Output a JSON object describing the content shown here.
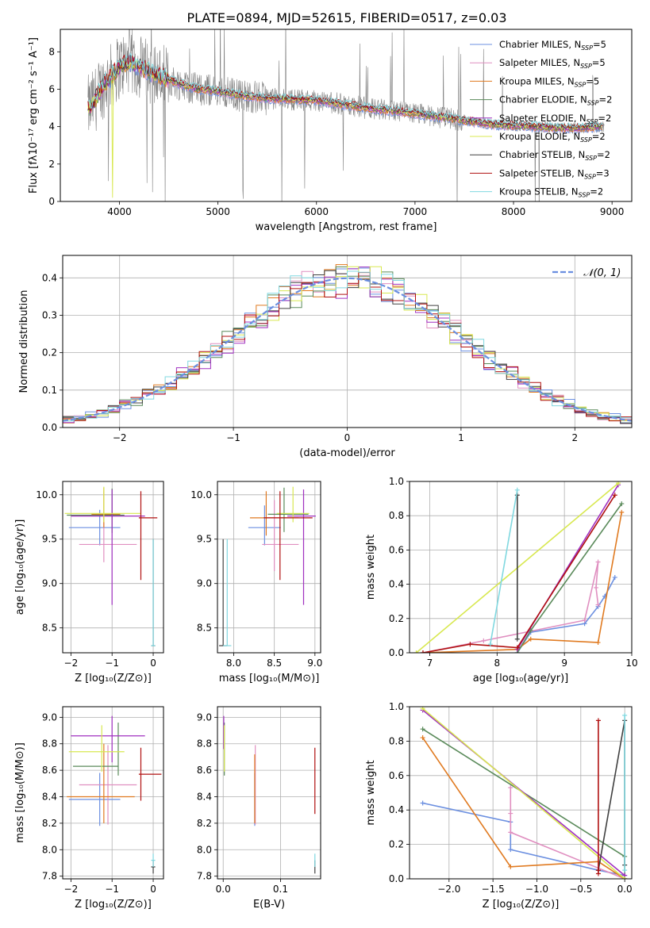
{
  "figure": {
    "title": "PLATE=0894, MJD=52615, FIBERID=0517, z=0.03"
  },
  "series_styles": [
    {
      "name": "Chabrier MILES",
      "nssp": "5",
      "color": "#6b8fe0"
    },
    {
      "name": "Salpeter MILES",
      "nssp": "5",
      "color": "#e08fc0"
    },
    {
      "name": "Kroupa MILES",
      "nssp": "5",
      "color": "#e07a20"
    },
    {
      "name": "Chabrier ELODIE",
      "nssp": "2",
      "color": "#5a8a5a"
    },
    {
      "name": "Salpeter ELODIE",
      "nssp": "2",
      "color": "#a030c0"
    },
    {
      "name": "Kroupa ELODIE",
      "nssp": "2",
      "color": "#d8e850"
    },
    {
      "name": "Chabrier STELIB",
      "nssp": "2",
      "color": "#404040"
    },
    {
      "name": "Salpeter STELIB",
      "nssp": "3",
      "color": "#b01010"
    },
    {
      "name": "Kroupa STELIB",
      "nssp": "2",
      "color": "#80d8e0"
    }
  ],
  "chart_data": [
    {
      "type": "line",
      "id": "spectrum",
      "xlabel": "wavelength [Angstrom, rest frame]",
      "ylabel": "Flux [fλ10⁻¹⁷ erg cm⁻² s⁻¹ A⁻¹]",
      "xlim": [
        3400,
        9200
      ],
      "ylim": [
        0,
        9.2
      ],
      "xticks": [
        4000,
        5000,
        6000,
        7000,
        8000,
        9000
      ],
      "yticks": [
        0,
        2,
        4,
        6,
        8
      ],
      "legend": "top-right",
      "model_continuum": {
        "x": [
          3700,
          3850,
          4000,
          4100,
          4200,
          4400,
          4600,
          4800,
          5000,
          5200,
          5500,
          6000,
          6500,
          7000,
          7400,
          7800,
          8200,
          8600,
          8900
        ],
        "y": [
          5.0,
          6.3,
          7.2,
          7.5,
          7.2,
          6.7,
          6.3,
          6.0,
          5.9,
          5.7,
          5.5,
          5.4,
          5.0,
          4.7,
          4.4,
          4.1,
          4.0,
          3.9,
          4.0
        ]
      },
      "data_color": "#808080"
    },
    {
      "type": "histogram",
      "id": "residuals",
      "xlabel": "(data-model)/error",
      "ylabel": "Normed distribution",
      "xlim": [
        -2.5,
        2.5
      ],
      "ylim": [
        0,
        0.46
      ],
      "xticks": [
        -2,
        -1,
        0,
        1,
        2
      ],
      "yticks": [
        0.0,
        0.1,
        0.2,
        0.3,
        0.4
      ],
      "legend": "top-right",
      "reference_curve": {
        "label": "𝒩(0, 1)",
        "color": "#6b8fe0",
        "mean": 0,
        "sigma": 1
      }
    },
    {
      "type": "scatter",
      "id": "age-vs-Z",
      "xlabel": "Z [log₁₀(Z/Z⊙)]",
      "ylabel": "age  [log₁₀(age/yr)]",
      "xlim": [
        -2.2,
        0.25
      ],
      "ylim": [
        8.22,
        10.15
      ],
      "xticks": [
        -2,
        -1,
        0
      ],
      "yticks": [
        8.5,
        9.0,
        9.5,
        10.0
      ],
      "points": [
        {
          "series": 0,
          "x": -1.3,
          "xerr": [
            0.75,
            0.5
          ],
          "y": 9.63,
          "yerr": [
            0.2,
            0.2
          ]
        },
        {
          "series": 1,
          "x": -1.2,
          "xerr": [
            0.6,
            0.8
          ],
          "y": 9.44,
          "yerr": [
            0.2,
            0.6
          ]
        },
        {
          "series": 2,
          "x": -1.2,
          "xerr": [
            0.3,
            0.4
          ],
          "y": 9.78,
          "yerr": [
            0.15,
            0.3
          ]
        },
        {
          "series": 3,
          "x": -1.0,
          "xerr": [
            1.1,
            0.3
          ],
          "y": 9.77,
          "yerr": [
            0.2,
            0.3
          ]
        },
        {
          "series": 4,
          "x": -1.0,
          "xerr": [
            1.0,
            0.8
          ],
          "y": 9.76,
          "yerr": [
            1.0,
            0.3
          ]
        },
        {
          "series": 5,
          "x": -1.2,
          "xerr": [
            0.95,
            0.9
          ],
          "y": 9.79,
          "yerr": [
            0.1,
            0.3
          ]
        },
        {
          "series": 6,
          "x": 0.0,
          "xerr": [
            0.05,
            0.05
          ],
          "y": 8.3,
          "yerr": [
            0.0,
            1.2
          ]
        },
        {
          "series": 7,
          "x": -0.3,
          "xerr": [
            0.05,
            0.4
          ],
          "y": 9.74,
          "yerr": [
            0.7,
            0.3
          ]
        },
        {
          "series": 8,
          "x": 0.0,
          "xerr": [
            0.05,
            0.05
          ],
          "y": 8.3,
          "yerr": [
            0.0,
            1.2
          ]
        }
      ]
    },
    {
      "type": "scatter",
      "id": "age-vs-mass",
      "xlabel": "mass [log₁₀(M/M⊙)]",
      "ylabel": "",
      "xlim": [
        7.8,
        9.07
      ],
      "ylim": [
        8.22,
        10.15
      ],
      "xticks": [
        8.0,
        8.5,
        9.0
      ],
      "yticks": [
        8.5,
        9.0,
        9.5,
        10.0
      ],
      "points": [
        {
          "series": 0,
          "x": 8.38,
          "xerr": [
            0.2,
            0.2
          ],
          "y": 9.63,
          "yerr": [
            0.2,
            0.25
          ]
        },
        {
          "series": 1,
          "x": 8.5,
          "xerr": [
            0.15,
            0.3
          ],
          "y": 9.44,
          "yerr": [
            0.3,
            0.5
          ]
        },
        {
          "series": 2,
          "x": 8.4,
          "xerr": [
            0.2,
            0.4
          ],
          "y": 9.74,
          "yerr": [
            0.2,
            0.3
          ]
        },
        {
          "series": 3,
          "x": 8.62,
          "xerr": [
            0.2,
            0.3
          ],
          "y": 9.78,
          "yerr": [
            0.2,
            0.3
          ]
        },
        {
          "series": 4,
          "x": 8.86,
          "xerr": [
            0.2,
            0.15
          ],
          "y": 9.76,
          "yerr": [
            1.0,
            0.3
          ]
        },
        {
          "series": 5,
          "x": 8.73,
          "xerr": [
            0.2,
            0.2
          ],
          "y": 9.79,
          "yerr": [
            0.1,
            0.3
          ]
        },
        {
          "series": 6,
          "x": 7.87,
          "xerr": [
            0.05,
            0.05
          ],
          "y": 8.3,
          "yerr": [
            0.0,
            1.2
          ]
        },
        {
          "series": 7,
          "x": 8.57,
          "xerr": [
            0.2,
            0.4
          ],
          "y": 9.74,
          "yerr": [
            0.7,
            0.3
          ]
        },
        {
          "series": 8,
          "x": 7.92,
          "xerr": [
            0.05,
            0.05
          ],
          "y": 8.3,
          "yerr": [
            0.0,
            1.2
          ]
        }
      ]
    },
    {
      "type": "line",
      "id": "mass-weight-vs-age",
      "xlabel": "age  [log₁₀(age/yr)]",
      "ylabel": "mass weight",
      "xlim": [
        6.7,
        10.0
      ],
      "ylim": [
        0,
        1.0
      ],
      "xticks": [
        7,
        8,
        9,
        10
      ],
      "yticks": [
        0.0,
        0.2,
        0.4,
        0.6,
        0.8,
        1.0
      ],
      "series": [
        {
          "style": 0,
          "x": [
            8.3,
            8.5,
            9.3,
            9.5,
            9.6,
            9.75
          ],
          "y": [
            0.0,
            0.12,
            0.17,
            0.27,
            0.33,
            0.44
          ]
        },
        {
          "style": 1,
          "x": [
            6.9,
            7.8,
            9.3,
            9.5,
            9.47,
            9.5
          ],
          "y": [
            0.0,
            0.07,
            0.19,
            0.53,
            0.38,
            0.28
          ]
        },
        {
          "style": 2,
          "x": [
            6.9,
            8.3,
            8.5,
            9.5,
            9.85
          ],
          "y": [
            0.0,
            0.02,
            0.08,
            0.06,
            0.82
          ]
        },
        {
          "style": 3,
          "x": [
            8.3,
            8.5,
            9.85
          ],
          "y": [
            0.0,
            0.13,
            0.87
          ]
        },
        {
          "style": 4,
          "x": [
            8.3,
            9.8
          ],
          "y": [
            0.02,
            0.98
          ]
        },
        {
          "style": 5,
          "x": [
            6.8,
            9.8
          ],
          "y": [
            0.0,
            0.99
          ]
        },
        {
          "style": 6,
          "x": [
            8.3,
            8.3
          ],
          "y": [
            0.08,
            0.92
          ]
        },
        {
          "style": 7,
          "x": [
            6.9,
            7.6,
            8.3,
            9.75
          ],
          "y": [
            0.0,
            0.05,
            0.03,
            0.92
          ]
        },
        {
          "style": 8,
          "x": [
            7.9,
            8.3
          ],
          "y": [
            0.05,
            0.95
          ]
        }
      ]
    },
    {
      "type": "scatter",
      "id": "mass-vs-Z",
      "xlabel": "Z [log₁₀(Z/Z⊙)]",
      "ylabel": "mass [log₁₀(M/M⊙)]",
      "xlim": [
        -2.2,
        0.25
      ],
      "ylim": [
        7.78,
        9.08
      ],
      "xticks": [
        -2,
        -1,
        0
      ],
      "yticks": [
        7.8,
        8.0,
        8.2,
        8.4,
        8.6,
        8.8,
        9.0
      ],
      "points": [
        {
          "series": 0,
          "x": -1.3,
          "xerr": [
            0.75,
            0.5
          ],
          "y": 8.38,
          "yerr": [
            0.2,
            0.2
          ]
        },
        {
          "series": 1,
          "x": -1.1,
          "xerr": [
            0.7,
            0.7
          ],
          "y": 8.49,
          "yerr": [
            0.3,
            0.3
          ]
        },
        {
          "series": 2,
          "x": -1.2,
          "xerr": [
            0.9,
            0.75
          ],
          "y": 8.4,
          "yerr": [
            0.2,
            0.4
          ]
        },
        {
          "series": 3,
          "x": -0.85,
          "xerr": [
            1.1,
            0.0
          ],
          "y": 8.63,
          "yerr": [
            0.07,
            0.33
          ]
        },
        {
          "series": 4,
          "x": -1.0,
          "xerr": [
            1.0,
            0.8
          ],
          "y": 8.86,
          "yerr": [
            0.2,
            0.15
          ]
        },
        {
          "series": 5,
          "x": -1.25,
          "xerr": [
            0.8,
            0.55
          ],
          "y": 8.74,
          "yerr": [
            0.15,
            0.2
          ]
        },
        {
          "series": 6,
          "x": 0.0,
          "xerr": [
            0.05,
            0.05
          ],
          "y": 7.87,
          "yerr": [
            0.05,
            0.05
          ]
        },
        {
          "series": 7,
          "x": -0.3,
          "xerr": [
            0.05,
            0.5
          ],
          "y": 8.57,
          "yerr": [
            0.2,
            0.2
          ]
        },
        {
          "series": 8,
          "x": 0.0,
          "xerr": [
            0.05,
            0.05
          ],
          "y": 7.92,
          "yerr": [
            0.05,
            0.05
          ]
        }
      ]
    },
    {
      "type": "scatter",
      "id": "mass-vs-ebv",
      "xlabel": "E(B-V)",
      "ylabel": "",
      "xlim": [
        -0.01,
        0.17
      ],
      "ylim": [
        7.78,
        9.08
      ],
      "xticks": [
        0.0,
        0.1
      ],
      "yticks": [
        7.8,
        8.0,
        8.2,
        8.4,
        8.6,
        8.8,
        9.0
      ],
      "points": [
        {
          "series": 0,
          "x": 0.055,
          "xerr": [
            0,
            0
          ],
          "y": 8.38,
          "yerr": [
            0.2,
            0.2
          ]
        },
        {
          "series": 1,
          "x": 0.056,
          "xerr": [
            0,
            0
          ],
          "y": 8.49,
          "yerr": [
            0.3,
            0.3
          ]
        },
        {
          "series": 2,
          "x": 0.055,
          "xerr": [
            0,
            0
          ],
          "y": 8.4,
          "yerr": [
            0.2,
            0.32
          ]
        },
        {
          "series": 3,
          "x": 0.002,
          "xerr": [
            0,
            0
          ],
          "y": 8.63,
          "yerr": [
            0.07,
            0.33
          ]
        },
        {
          "series": 4,
          "x": 0.001,
          "xerr": [
            0,
            0
          ],
          "y": 8.86,
          "yerr": [
            0.1,
            0.15
          ]
        },
        {
          "series": 5,
          "x": 0.002,
          "xerr": [
            0,
            0
          ],
          "y": 8.74,
          "yerr": [
            0.15,
            0.2
          ]
        },
        {
          "series": 6,
          "x": 0.16,
          "xerr": [
            0,
            0
          ],
          "y": 7.87,
          "yerr": [
            0.05,
            0.05
          ]
        },
        {
          "series": 7,
          "x": 0.16,
          "xerr": [
            0,
            0
          ],
          "y": 8.57,
          "yerr": [
            0.3,
            0.2
          ]
        },
        {
          "series": 8,
          "x": 0.16,
          "xerr": [
            0,
            0
          ],
          "y": 7.92,
          "yerr": [
            0.05,
            0.05
          ]
        }
      ]
    },
    {
      "type": "line",
      "id": "mass-weight-vs-Z",
      "xlabel": "Z [log₁₀(Z/Z⊙)]",
      "ylabel": "mass weight",
      "xlim": [
        -2.45,
        0.08
      ],
      "ylim": [
        0,
        1.0
      ],
      "xticks": [
        -2.0,
        -1.5,
        -1.0,
        -0.5,
        0.0
      ],
      "yticks": [
        0.0,
        0.2,
        0.4,
        0.6,
        0.8,
        1.0
      ],
      "series": [
        {
          "style": 0,
          "x": [
            -2.3,
            -1.3,
            -1.3,
            -0.3,
            0.0,
            0.0
          ],
          "y": [
            0.44,
            0.33,
            0.17,
            0.05,
            0.02,
            0.0
          ]
        },
        {
          "style": 1,
          "x": [
            -1.3,
            -1.3,
            -1.3,
            0.0
          ],
          "y": [
            0.53,
            0.38,
            0.27,
            0.0
          ]
        },
        {
          "style": 2,
          "x": [
            -2.3,
            -1.3,
            -0.3,
            0.0
          ],
          "y": [
            0.82,
            0.07,
            0.1,
            0.0
          ]
        },
        {
          "style": 3,
          "x": [
            -2.3,
            0.0,
            0.0
          ],
          "y": [
            0.87,
            0.13,
            0.0
          ]
        },
        {
          "style": 4,
          "x": [
            -2.3,
            0.0
          ],
          "y": [
            0.98,
            0.02
          ]
        },
        {
          "style": 5,
          "x": [
            -2.3,
            0.0
          ],
          "y": [
            0.99,
            0.0
          ]
        },
        {
          "style": 6,
          "x": [
            -0.3,
            0.0,
            0.0
          ],
          "y": [
            0.05,
            0.92,
            0.08
          ]
        },
        {
          "style": 7,
          "x": [
            -0.3,
            -0.3,
            -0.3
          ],
          "y": [
            0.92,
            0.05,
            0.03
          ]
        },
        {
          "style": 8,
          "x": [
            0.0,
            0.0
          ],
          "y": [
            0.95,
            0.05
          ]
        }
      ]
    }
  ]
}
